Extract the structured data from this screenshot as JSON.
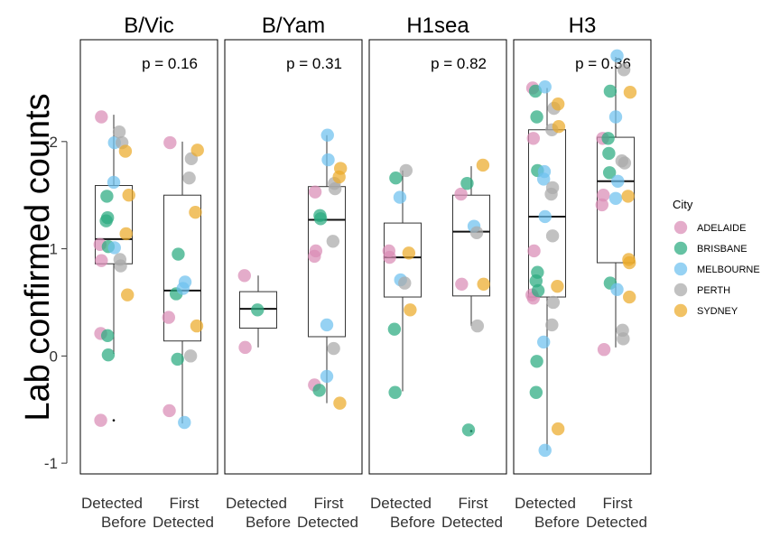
{
  "chart_data": {
    "type": "boxplot-jitter",
    "ylabel": "Lab confirmed counts",
    "ylim": [
      -1.1,
      2.95
    ],
    "y_ticks": [
      -1,
      0,
      1,
      2
    ],
    "x_categories": [
      {
        "line1": "Detected",
        "line2": "Before"
      },
      {
        "line1": "First",
        "line2": "Detected"
      }
    ],
    "legend": {
      "title": "City",
      "items": [
        {
          "name": "ADELAIDE",
          "color": "#D98CB5"
        },
        {
          "name": "BRISBANE",
          "color": "#2AAA7F"
        },
        {
          "name": "MELBOURNE",
          "color": "#6DC1EE"
        },
        {
          "name": "PERTH",
          "color": "#A9A9A9"
        },
        {
          "name": "SYDNEY",
          "color": "#EBAB2A"
        }
      ]
    },
    "panels": [
      {
        "title": "B/Vic",
        "p_label": "p = 0.16",
        "boxes": [
          {
            "q1": 0.86,
            "median": 1.09,
            "q3": 1.59,
            "wlo": 0.02,
            "whi": 2.25,
            "outliers": [
              -0.6
            ]
          },
          {
            "q1": 0.14,
            "median": 0.61,
            "q3": 1.5,
            "wlo": -0.63,
            "whi": 2.0,
            "outliers": []
          }
        ],
        "points": [
          {
            "g": 0,
            "dx": -0.18,
            "y": 2.23,
            "c": 0
          },
          {
            "g": 0,
            "dx": -0.2,
            "y": 1.04,
            "c": 0
          },
          {
            "g": 0,
            "dx": -0.18,
            "y": 0.89,
            "c": 0
          },
          {
            "g": 0,
            "dx": -0.19,
            "y": 0.21,
            "c": 0
          },
          {
            "g": 0,
            "dx": -0.19,
            "y": -0.6,
            "c": 0
          },
          {
            "g": 0,
            "dx": -0.1,
            "y": 1.49,
            "c": 1
          },
          {
            "g": 0,
            "dx": -0.09,
            "y": 1.29,
            "c": 1
          },
          {
            "g": 0,
            "dx": -0.11,
            "y": 1.26,
            "c": 1
          },
          {
            "g": 0,
            "dx": -0.08,
            "y": 1.02,
            "c": 1
          },
          {
            "g": 0,
            "dx": -0.09,
            "y": 0.19,
            "c": 1
          },
          {
            "g": 0,
            "dx": -0.08,
            "y": 0.01,
            "c": 1
          },
          {
            "g": 0,
            "dx": 0.01,
            "y": 1.99,
            "c": 2
          },
          {
            "g": 0,
            "dx": 0.0,
            "y": 1.62,
            "c": 2
          },
          {
            "g": 0,
            "dx": 0.01,
            "y": 1.01,
            "c": 2
          },
          {
            "g": 0,
            "dx": 0.08,
            "y": 2.09,
            "c": 3
          },
          {
            "g": 0,
            "dx": 0.12,
            "y": 1.99,
            "c": 3
          },
          {
            "g": 0,
            "dx": 0.09,
            "y": 0.9,
            "c": 3
          },
          {
            "g": 0,
            "dx": 0.1,
            "y": 0.84,
            "c": 3
          },
          {
            "g": 0,
            "dx": 0.17,
            "y": 1.91,
            "c": 4
          },
          {
            "g": 0,
            "dx": 0.22,
            "y": 1.5,
            "c": 4
          },
          {
            "g": 0,
            "dx": 0.18,
            "y": 1.14,
            "c": 4
          },
          {
            "g": 0,
            "dx": 0.2,
            "y": 0.57,
            "c": 4
          },
          {
            "g": 1,
            "dx": -0.18,
            "y": 1.99,
            "c": 0
          },
          {
            "g": 1,
            "dx": -0.2,
            "y": 0.36,
            "c": 0
          },
          {
            "g": 1,
            "dx": -0.19,
            "y": -0.51,
            "c": 0
          },
          {
            "g": 1,
            "dx": -0.06,
            "y": 0.95,
            "c": 1
          },
          {
            "g": 1,
            "dx": -0.09,
            "y": 0.58,
            "c": 1
          },
          {
            "g": 1,
            "dx": -0.07,
            "y": -0.03,
            "c": 1
          },
          {
            "g": 1,
            "dx": 0.04,
            "y": 0.69,
            "c": 2
          },
          {
            "g": 1,
            "dx": 0.01,
            "y": 0.63,
            "c": 2
          },
          {
            "g": 1,
            "dx": 0.03,
            "y": -0.62,
            "c": 2
          },
          {
            "g": 1,
            "dx": 0.13,
            "y": 1.84,
            "c": 3
          },
          {
            "g": 1,
            "dx": 0.1,
            "y": 1.66,
            "c": 3
          },
          {
            "g": 1,
            "dx": 0.12,
            "y": 0.0,
            "c": 3
          },
          {
            "g": 1,
            "dx": 0.22,
            "y": 1.92,
            "c": 4
          },
          {
            "g": 1,
            "dx": 0.19,
            "y": 1.34,
            "c": 4
          },
          {
            "g": 1,
            "dx": 0.21,
            "y": 0.28,
            "c": 4
          }
        ]
      },
      {
        "title": "B/Yam",
        "p_label": "p = 0.31",
        "boxes": [
          {
            "q1": 0.26,
            "median": 0.44,
            "q3": 0.6,
            "wlo": 0.08,
            "whi": 0.75,
            "outliers": []
          },
          {
            "q1": 0.18,
            "median": 1.27,
            "q3": 1.58,
            "wlo": -0.44,
            "whi": 2.06,
            "outliers": []
          }
        ],
        "points": [
          {
            "g": 0,
            "dx": -0.2,
            "y": 0.75,
            "c": 0
          },
          {
            "g": 0,
            "dx": -0.19,
            "y": 0.08,
            "c": 0
          },
          {
            "g": 0,
            "dx": -0.01,
            "y": 0.43,
            "c": 1
          },
          {
            "g": 1,
            "dx": -0.17,
            "y": 1.53,
            "c": 0
          },
          {
            "g": 1,
            "dx": -0.16,
            "y": 0.98,
            "c": 0
          },
          {
            "g": 1,
            "dx": -0.18,
            "y": 0.93,
            "c": 0
          },
          {
            "g": 1,
            "dx": -0.18,
            "y": -0.27,
            "c": 0
          },
          {
            "g": 1,
            "dx": -0.1,
            "y": 1.31,
            "c": 1
          },
          {
            "g": 1,
            "dx": -0.09,
            "y": 1.28,
            "c": 1
          },
          {
            "g": 1,
            "dx": -0.11,
            "y": -0.32,
            "c": 1
          },
          {
            "g": 1,
            "dx": 0.01,
            "y": 2.06,
            "c": 2
          },
          {
            "g": 1,
            "dx": 0.02,
            "y": 1.83,
            "c": 2
          },
          {
            "g": 1,
            "dx": 0.0,
            "y": 0.29,
            "c": 2
          },
          {
            "g": 1,
            "dx": 0.0,
            "y": -0.19,
            "c": 2
          },
          {
            "g": 1,
            "dx": 0.11,
            "y": 1.61,
            "c": 3
          },
          {
            "g": 1,
            "dx": 0.12,
            "y": 1.56,
            "c": 3
          },
          {
            "g": 1,
            "dx": 0.09,
            "y": 1.07,
            "c": 3
          },
          {
            "g": 1,
            "dx": 0.1,
            "y": 0.07,
            "c": 3
          },
          {
            "g": 1,
            "dx": 0.2,
            "y": 1.75,
            "c": 4
          },
          {
            "g": 1,
            "dx": 0.18,
            "y": 1.67,
            "c": 4
          },
          {
            "g": 1,
            "dx": 0.19,
            "y": -0.44,
            "c": 4
          }
        ]
      },
      {
        "title": "H1sea",
        "p_label": "p = 0.82",
        "boxes": [
          {
            "q1": 0.55,
            "median": 0.92,
            "q3": 1.24,
            "wlo": -0.33,
            "whi": 1.73,
            "outliers": []
          },
          {
            "q1": 0.56,
            "median": 1.16,
            "q3": 1.5,
            "wlo": 0.28,
            "whi": 1.77,
            "outliers": [
              -0.7
            ]
          }
        ],
        "points": [
          {
            "g": 0,
            "dx": -0.2,
            "y": 0.98,
            "c": 0
          },
          {
            "g": 0,
            "dx": -0.19,
            "y": 0.92,
            "c": 0
          },
          {
            "g": 0,
            "dx": -0.1,
            "y": 1.66,
            "c": 1
          },
          {
            "g": 0,
            "dx": -0.12,
            "y": 0.25,
            "c": 1
          },
          {
            "g": 0,
            "dx": -0.11,
            "y": -0.34,
            "c": 1
          },
          {
            "g": 0,
            "dx": -0.04,
            "y": 1.48,
            "c": 2
          },
          {
            "g": 0,
            "dx": -0.03,
            "y": 0.71,
            "c": 2
          },
          {
            "g": 0,
            "dx": 0.05,
            "y": 1.73,
            "c": 3
          },
          {
            "g": 0,
            "dx": 0.03,
            "y": 0.68,
            "c": 3
          },
          {
            "g": 0,
            "dx": 0.09,
            "y": 0.96,
            "c": 4
          },
          {
            "g": 0,
            "dx": 0.11,
            "y": 0.43,
            "c": 4
          },
          {
            "g": 1,
            "dx": -0.15,
            "y": 1.51,
            "c": 0
          },
          {
            "g": 1,
            "dx": -0.14,
            "y": 0.67,
            "c": 0
          },
          {
            "g": 1,
            "dx": -0.06,
            "y": 1.61,
            "c": 1
          },
          {
            "g": 1,
            "dx": -0.04,
            "y": -0.69,
            "c": 1
          },
          {
            "g": 1,
            "dx": 0.04,
            "y": 1.21,
            "c": 2
          },
          {
            "g": 1,
            "dx": 0.08,
            "y": 1.15,
            "c": 3
          },
          {
            "g": 1,
            "dx": 0.09,
            "y": 0.28,
            "c": 3
          },
          {
            "g": 1,
            "dx": 0.17,
            "y": 1.78,
            "c": 4
          },
          {
            "g": 1,
            "dx": 0.18,
            "y": 0.67,
            "c": 4
          }
        ]
      },
      {
        "title": "H3",
        "p_label": "p = 0.36",
        "boxes": [
          {
            "q1": 0.55,
            "median": 1.3,
            "q3": 2.11,
            "wlo": -0.88,
            "whi": 2.5,
            "outliers": []
          },
          {
            "q1": 0.87,
            "median": 1.63,
            "q3": 2.04,
            "wlo": 0.08,
            "whi": 2.79,
            "outliers": []
          }
        ],
        "points": [
          {
            "g": 0,
            "dx": -0.21,
            "y": 2.5,
            "c": 0
          },
          {
            "g": 0,
            "dx": -0.2,
            "y": 2.03,
            "c": 0
          },
          {
            "g": 0,
            "dx": -0.19,
            "y": 0.98,
            "c": 0
          },
          {
            "g": 0,
            "dx": -0.22,
            "y": 0.57,
            "c": 0
          },
          {
            "g": 0,
            "dx": -0.2,
            "y": 0.54,
            "c": 0
          },
          {
            "g": 0,
            "dx": -0.17,
            "y": 2.47,
            "c": 1
          },
          {
            "g": 0,
            "dx": -0.15,
            "y": 2.23,
            "c": 1
          },
          {
            "g": 0,
            "dx": -0.14,
            "y": 1.73,
            "c": 1
          },
          {
            "g": 0,
            "dx": -0.14,
            "y": 0.78,
            "c": 1
          },
          {
            "g": 0,
            "dx": -0.16,
            "y": 0.7,
            "c": 1
          },
          {
            "g": 0,
            "dx": -0.13,
            "y": 0.61,
            "c": 1
          },
          {
            "g": 0,
            "dx": -0.15,
            "y": -0.05,
            "c": 1
          },
          {
            "g": 0,
            "dx": -0.16,
            "y": -0.34,
            "c": 1
          },
          {
            "g": 0,
            "dx": -0.03,
            "y": 2.51,
            "c": 2
          },
          {
            "g": 0,
            "dx": -0.04,
            "y": 1.72,
            "c": 2
          },
          {
            "g": 0,
            "dx": -0.05,
            "y": 1.65,
            "c": 2
          },
          {
            "g": 0,
            "dx": -0.03,
            "y": 1.3,
            "c": 2
          },
          {
            "g": 0,
            "dx": -0.05,
            "y": 0.13,
            "c": 2
          },
          {
            "g": 0,
            "dx": -0.03,
            "y": -0.88,
            "c": 2
          },
          {
            "g": 0,
            "dx": 0.1,
            "y": 2.31,
            "c": 3
          },
          {
            "g": 0,
            "dx": 0.07,
            "y": 2.11,
            "c": 3
          },
          {
            "g": 0,
            "dx": 0.08,
            "y": 1.57,
            "c": 3
          },
          {
            "g": 0,
            "dx": 0.06,
            "y": 1.51,
            "c": 3
          },
          {
            "g": 0,
            "dx": 0.08,
            "y": 1.12,
            "c": 3
          },
          {
            "g": 0,
            "dx": 0.09,
            "y": 0.5,
            "c": 3
          },
          {
            "g": 0,
            "dx": 0.07,
            "y": 0.29,
            "c": 3
          },
          {
            "g": 0,
            "dx": 0.16,
            "y": 2.35,
            "c": 4
          },
          {
            "g": 0,
            "dx": 0.17,
            "y": 2.14,
            "c": 4
          },
          {
            "g": 0,
            "dx": 0.15,
            "y": 0.65,
            "c": 4
          },
          {
            "g": 0,
            "dx": 0.16,
            "y": -0.68,
            "c": 4
          },
          {
            "g": 1,
            "dx": -0.19,
            "y": 2.03,
            "c": 0
          },
          {
            "g": 1,
            "dx": -0.18,
            "y": 1.5,
            "c": 0
          },
          {
            "g": 1,
            "dx": -0.2,
            "y": 1.41,
            "c": 0
          },
          {
            "g": 1,
            "dx": -0.17,
            "y": 0.06,
            "c": 0
          },
          {
            "g": 1,
            "dx": -0.08,
            "y": 2.47,
            "c": 1
          },
          {
            "g": 1,
            "dx": -0.11,
            "y": 2.03,
            "c": 1
          },
          {
            "g": 1,
            "dx": -0.1,
            "y": 1.89,
            "c": 1
          },
          {
            "g": 1,
            "dx": -0.09,
            "y": 1.71,
            "c": 1
          },
          {
            "g": 1,
            "dx": -0.08,
            "y": 0.68,
            "c": 1
          },
          {
            "g": 1,
            "dx": 0.02,
            "y": 2.8,
            "c": 2
          },
          {
            "g": 1,
            "dx": 0.0,
            "y": 2.23,
            "c": 2
          },
          {
            "g": 1,
            "dx": 0.03,
            "y": 1.63,
            "c": 2
          },
          {
            "g": 1,
            "dx": 0.0,
            "y": 1.47,
            "c": 2
          },
          {
            "g": 1,
            "dx": 0.02,
            "y": 0.62,
            "c": 2
          },
          {
            "g": 1,
            "dx": 0.12,
            "y": 2.67,
            "c": 3
          },
          {
            "g": 1,
            "dx": 0.09,
            "y": 1.82,
            "c": 3
          },
          {
            "g": 1,
            "dx": 0.13,
            "y": 1.8,
            "c": 3
          },
          {
            "g": 1,
            "dx": 0.1,
            "y": 0.24,
            "c": 3
          },
          {
            "g": 1,
            "dx": 0.11,
            "y": 0.16,
            "c": 3
          },
          {
            "g": 1,
            "dx": 0.21,
            "y": 2.46,
            "c": 4
          },
          {
            "g": 1,
            "dx": 0.18,
            "y": 1.49,
            "c": 4
          },
          {
            "g": 1,
            "dx": 0.19,
            "y": 0.9,
            "c": 4
          },
          {
            "g": 1,
            "dx": 0.2,
            "y": 0.87,
            "c": 4
          },
          {
            "g": 1,
            "dx": 0.2,
            "y": 0.55,
            "c": 4
          }
        ]
      }
    ]
  }
}
